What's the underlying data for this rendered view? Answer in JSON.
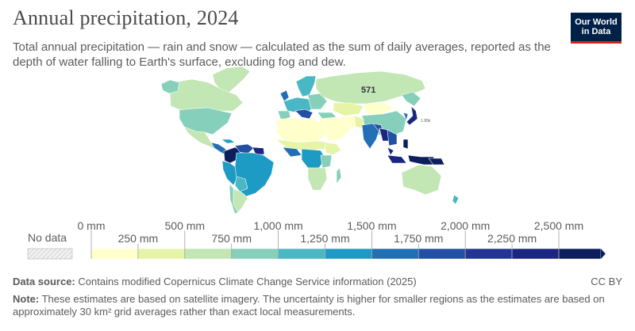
{
  "header": {
    "title": "Annual precipitation, 2024",
    "subtitle": "Total annual precipitation — rain and snow — calculated as the sum of daily averages, reported as the depth of water falling to Earth's surface, excluding fog and dew."
  },
  "logo": {
    "line1": "Our World",
    "line2": "in Data"
  },
  "map": {
    "labels": {
      "russia": "571",
      "japan": "1.95k"
    }
  },
  "legend": {
    "no_data": "No data",
    "top_ticks": [
      "0 mm",
      "500 mm",
      "1,000 mm",
      "1,500 mm",
      "2,000 mm",
      "2,500 mm"
    ],
    "bottom_ticks": [
      "250 mm",
      "750 mm",
      "1,250 mm",
      "1,750 mm",
      "2,250 mm"
    ],
    "bins": [
      {
        "from": 0,
        "to": 250,
        "color": "#ffffcc"
      },
      {
        "from": 250,
        "to": 500,
        "color": "#e6f4a8"
      },
      {
        "from": 500,
        "to": 750,
        "color": "#c2e6b4"
      },
      {
        "from": 750,
        "to": 1000,
        "color": "#86cfbb"
      },
      {
        "from": 1000,
        "to": 1250,
        "color": "#49b8c4"
      },
      {
        "from": 1250,
        "to": 1500,
        "color": "#1d9bc5"
      },
      {
        "from": 1500,
        "to": 1750,
        "color": "#2270b3"
      },
      {
        "from": 1750,
        "to": 2000,
        "color": "#2350a3"
      },
      {
        "from": 2000,
        "to": 2250,
        "color": "#233593"
      },
      {
        "from": 2250,
        "to": 2500,
        "color": "#1a2680"
      },
      {
        "from": 2500,
        "to": 2750,
        "color": "#0c1f5c"
      }
    ]
  },
  "footer": {
    "source_label": "Data source:",
    "source_text": "Contains modified Copernicus Climate Change Service information (2025)",
    "license": "CC BY",
    "note_label": "Note:",
    "note_text": "These estimates are based on satellite imagery. The uncertainty is higher for smaller regions as the estimates are based on approximately 30 km² grid averages rather than exact local measurements."
  }
}
